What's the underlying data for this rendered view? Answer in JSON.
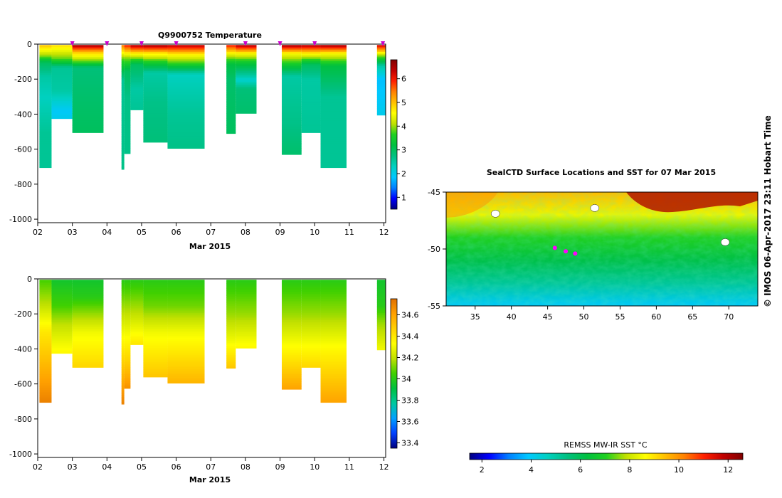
{
  "side_label": "© IMOS 06-Apr-2017 23:11 Hobart Time",
  "colors": {
    "jet_stops": [
      "#00007f",
      "#0000ff",
      "#007fff",
      "#00c8ff",
      "#00d0c0",
      "#00c080",
      "#00c040",
      "#20d020",
      "#c0e000",
      "#ffff00",
      "#ffc000",
      "#ff8000",
      "#ff2000",
      "#c00000",
      "#800000"
    ],
    "salinity_stops": [
      "#00007f",
      "#0040ff",
      "#00a0ff",
      "#00c8a0",
      "#00c040",
      "#40d000",
      "#c0e000",
      "#ffff00",
      "#ffd000",
      "#ffa000",
      "#e07000"
    ]
  },
  "chart_data": [
    {
      "id": "temperature",
      "type": "heatmap",
      "title": "Q9900752  Temperature",
      "xlabel": "Mar 2015",
      "ylabel": "",
      "xlim": [
        2,
        12.05
      ],
      "ylim": [
        -1020,
        0
      ],
      "xticks": [
        "02",
        "03",
        "04",
        "05",
        "06",
        "07",
        "08",
        "09",
        "10",
        "11",
        "12"
      ],
      "yticks": [
        0,
        -200,
        -400,
        -600,
        -800,
        -1000
      ],
      "colorbar": {
        "min": 0.5,
        "max": 6.8,
        "ticks": [
          1,
          2,
          3,
          4,
          5,
          6
        ]
      },
      "profile_markers": [
        3.0,
        4.0,
        5.0,
        6.0,
        8.0,
        9.0,
        10.0,
        11.97
      ],
      "profiles": [
        {
          "x0": 2.05,
          "x1": 2.4,
          "depth": 700,
          "values": [
            {
              "d": 0,
              "v": 5.0
            },
            {
              "d": 60,
              "v": 4.0
            },
            {
              "d": 100,
              "v": 3.0
            },
            {
              "d": 180,
              "v": 2.5
            },
            {
              "d": 300,
              "v": 2.3
            },
            {
              "d": 500,
              "v": 2.6
            },
            {
              "d": 700,
              "v": 2.6
            }
          ]
        },
        {
          "x0": 2.4,
          "x1": 3.0,
          "depth": 420,
          "values": [
            {
              "d": 0,
              "v": 4.8
            },
            {
              "d": 80,
              "v": 3.8
            },
            {
              "d": 130,
              "v": 2.6
            },
            {
              "d": 260,
              "v": 2.5
            },
            {
              "d": 380,
              "v": 1.9
            },
            {
              "d": 420,
              "v": 2.0
            }
          ]
        },
        {
          "x0": 3.0,
          "x1": 3.9,
          "depth": 500,
          "values": [
            {
              "d": 0,
              "v": 6.6
            },
            {
              "d": 40,
              "v": 5.0
            },
            {
              "d": 90,
              "v": 3.9
            },
            {
              "d": 130,
              "v": 2.8
            },
            {
              "d": 300,
              "v": 2.9
            },
            {
              "d": 500,
              "v": 3.0
            }
          ]
        },
        {
          "x0": 4.42,
          "x1": 4.5,
          "depth": 710,
          "values": [
            {
              "d": 0,
              "v": 5.5
            },
            {
              "d": 80,
              "v": 3.8
            },
            {
              "d": 200,
              "v": 2.6
            },
            {
              "d": 710,
              "v": 2.7
            }
          ]
        },
        {
          "x0": 4.5,
          "x1": 4.68,
          "depth": 620,
          "values": [
            {
              "d": 0,
              "v": 6.0
            },
            {
              "d": 70,
              "v": 4.0
            },
            {
              "d": 150,
              "v": 3.0
            },
            {
              "d": 300,
              "v": 2.7
            },
            {
              "d": 620,
              "v": 2.7
            }
          ]
        },
        {
          "x0": 4.68,
          "x1": 5.05,
          "depth": 370,
          "values": [
            {
              "d": 0,
              "v": 6.5
            },
            {
              "d": 50,
              "v": 4.6
            },
            {
              "d": 110,
              "v": 3.0
            },
            {
              "d": 250,
              "v": 2.5
            },
            {
              "d": 370,
              "v": 2.6
            }
          ]
        },
        {
          "x0": 5.05,
          "x1": 5.75,
          "depth": 555,
          "values": [
            {
              "d": 0,
              "v": 6.6
            },
            {
              "d": 45,
              "v": 4.8
            },
            {
              "d": 100,
              "v": 3.5
            },
            {
              "d": 160,
              "v": 2.5
            },
            {
              "d": 330,
              "v": 2.7
            },
            {
              "d": 555,
              "v": 2.8
            }
          ]
        },
        {
          "x0": 5.75,
          "x1": 6.82,
          "depth": 590,
          "values": [
            {
              "d": 0,
              "v": 6.4
            },
            {
              "d": 60,
              "v": 4.5
            },
            {
              "d": 110,
              "v": 3.6
            },
            {
              "d": 170,
              "v": 2.3
            },
            {
              "d": 400,
              "v": 2.6
            },
            {
              "d": 590,
              "v": 2.7
            }
          ]
        },
        {
          "x0": 7.45,
          "x1": 7.72,
          "depth": 505,
          "values": [
            {
              "d": 0,
              "v": 6.0
            },
            {
              "d": 60,
              "v": 4.2
            },
            {
              "d": 110,
              "v": 3.2
            },
            {
              "d": 200,
              "v": 2.9
            },
            {
              "d": 505,
              "v": 3.0
            }
          ]
        },
        {
          "x0": 7.72,
          "x1": 8.32,
          "depth": 390,
          "values": [
            {
              "d": 0,
              "v": 6.5
            },
            {
              "d": 50,
              "v": 4.5
            },
            {
              "d": 100,
              "v": 3.4
            },
            {
              "d": 200,
              "v": 2.2
            },
            {
              "d": 250,
              "v": 2.8
            },
            {
              "d": 390,
              "v": 2.9
            }
          ]
        },
        {
          "x0": 9.05,
          "x1": 9.62,
          "depth": 625,
          "values": [
            {
              "d": 0,
              "v": 6.6
            },
            {
              "d": 50,
              "v": 4.5
            },
            {
              "d": 110,
              "v": 3.5
            },
            {
              "d": 180,
              "v": 2.5
            },
            {
              "d": 450,
              "v": 2.7
            },
            {
              "d": 625,
              "v": 2.9
            }
          ]
        },
        {
          "x0": 9.62,
          "x1": 10.17,
          "depth": 500,
          "values": [
            {
              "d": 0,
              "v": 6.5
            },
            {
              "d": 50,
              "v": 4.6
            },
            {
              "d": 110,
              "v": 3.0
            },
            {
              "d": 200,
              "v": 2.5
            },
            {
              "d": 500,
              "v": 2.6
            }
          ]
        },
        {
          "x0": 10.17,
          "x1": 10.92,
          "depth": 700,
          "values": [
            {
              "d": 0,
              "v": 6.6
            },
            {
              "d": 50,
              "v": 4.5
            },
            {
              "d": 120,
              "v": 3.2
            },
            {
              "d": 300,
              "v": 2.6
            },
            {
              "d": 700,
              "v": 2.6
            }
          ]
        },
        {
          "x0": 11.8,
          "x1": 12.05,
          "depth": 400,
          "values": [
            {
              "d": 0,
              "v": 6.3
            },
            {
              "d": 60,
              "v": 4.0
            },
            {
              "d": 120,
              "v": 2.5
            },
            {
              "d": 200,
              "v": 1.8
            },
            {
              "d": 330,
              "v": 1.9
            },
            {
              "d": 400,
              "v": 2.0
            }
          ]
        }
      ]
    },
    {
      "id": "salinity",
      "type": "heatmap",
      "title": "",
      "xlabel": "Mar 2015",
      "ylabel": "",
      "xlim": [
        2,
        12.05
      ],
      "ylim": [
        -1020,
        0
      ],
      "xticks": [
        "02",
        "03",
        "04",
        "05",
        "06",
        "07",
        "08",
        "09",
        "10",
        "11",
        "12"
      ],
      "yticks": [
        0,
        -200,
        -400,
        -600,
        -800,
        -1000
      ],
      "colorbar": {
        "min": 33.35,
        "max": 34.75,
        "ticks": [
          33.4,
          33.6,
          33.8,
          34,
          34.2,
          34.4,
          34.6
        ]
      },
      "profiles": [
        {
          "x0": 2.05,
          "x1": 2.4,
          "depth": 700,
          "values": [
            {
              "d": 0,
              "v": 34.05
            },
            {
              "d": 150,
              "v": 34.2
            },
            {
              "d": 300,
              "v": 34.4
            },
            {
              "d": 500,
              "v": 34.55
            },
            {
              "d": 700,
              "v": 34.7
            }
          ]
        },
        {
          "x0": 2.4,
          "x1": 3.0,
          "depth": 420,
          "values": [
            {
              "d": 0,
              "v": 33.95
            },
            {
              "d": 150,
              "v": 34.05
            },
            {
              "d": 260,
              "v": 34.2
            },
            {
              "d": 420,
              "v": 34.35
            }
          ]
        },
        {
          "x0": 3.0,
          "x1": 3.9,
          "depth": 500,
          "values": [
            {
              "d": 0,
              "v": 33.95
            },
            {
              "d": 100,
              "v": 34.0
            },
            {
              "d": 200,
              "v": 34.15
            },
            {
              "d": 300,
              "v": 34.3
            },
            {
              "d": 500,
              "v": 34.45
            }
          ]
        },
        {
          "x0": 4.42,
          "x1": 4.5,
          "depth": 710,
          "values": [
            {
              "d": 0,
              "v": 34.0
            },
            {
              "d": 300,
              "v": 34.3
            },
            {
              "d": 710,
              "v": 34.7
            }
          ]
        },
        {
          "x0": 4.5,
          "x1": 4.68,
          "depth": 620,
          "values": [
            {
              "d": 0,
              "v": 34.0
            },
            {
              "d": 250,
              "v": 34.25
            },
            {
              "d": 450,
              "v": 34.45
            },
            {
              "d": 620,
              "v": 34.65
            }
          ]
        },
        {
          "x0": 4.68,
          "x1": 5.05,
          "depth": 370,
          "values": [
            {
              "d": 0,
              "v": 34.0
            },
            {
              "d": 200,
              "v": 34.2
            },
            {
              "d": 370,
              "v": 34.4
            }
          ]
        },
        {
          "x0": 5.05,
          "x1": 5.75,
          "depth": 555,
          "values": [
            {
              "d": 0,
              "v": 34.0
            },
            {
              "d": 150,
              "v": 34.1
            },
            {
              "d": 300,
              "v": 34.3
            },
            {
              "d": 555,
              "v": 34.5
            }
          ]
        },
        {
          "x0": 5.75,
          "x1": 6.82,
          "depth": 590,
          "values": [
            {
              "d": 0,
              "v": 34.0
            },
            {
              "d": 150,
              "v": 34.1
            },
            {
              "d": 300,
              "v": 34.3
            },
            {
              "d": 590,
              "v": 34.55
            }
          ]
        },
        {
          "x0": 7.45,
          "x1": 7.72,
          "depth": 505,
          "values": [
            {
              "d": 0,
              "v": 34.0
            },
            {
              "d": 200,
              "v": 34.15
            },
            {
              "d": 350,
              "v": 34.3
            },
            {
              "d": 505,
              "v": 34.5
            }
          ]
        },
        {
          "x0": 7.72,
          "x1": 8.32,
          "depth": 390,
          "values": [
            {
              "d": 0,
              "v": 34.0
            },
            {
              "d": 200,
              "v": 34.15
            },
            {
              "d": 390,
              "v": 34.35
            }
          ]
        },
        {
          "x0": 9.05,
          "x1": 9.62,
          "depth": 625,
          "values": [
            {
              "d": 0,
              "v": 34.0
            },
            {
              "d": 200,
              "v": 34.15
            },
            {
              "d": 400,
              "v": 34.35
            },
            {
              "d": 625,
              "v": 34.6
            }
          ]
        },
        {
          "x0": 9.62,
          "x1": 10.17,
          "depth": 500,
          "values": [
            {
              "d": 0,
              "v": 34.0
            },
            {
              "d": 200,
              "v": 34.15
            },
            {
              "d": 350,
              "v": 34.3
            },
            {
              "d": 500,
              "v": 34.45
            }
          ]
        },
        {
          "x0": 10.17,
          "x1": 10.92,
          "depth": 700,
          "values": [
            {
              "d": 0,
              "v": 34.0
            },
            {
              "d": 200,
              "v": 34.15
            },
            {
              "d": 400,
              "v": 34.35
            },
            {
              "d": 700,
              "v": 34.6
            }
          ]
        },
        {
          "x0": 11.8,
          "x1": 12.05,
          "depth": 400,
          "values": [
            {
              "d": 0,
              "v": 33.95
            },
            {
              "d": 150,
              "v": 34.0
            },
            {
              "d": 250,
              "v": 34.15
            },
            {
              "d": 400,
              "v": 34.3
            }
          ]
        }
      ]
    },
    {
      "id": "sst-map",
      "type": "heatmap",
      "title": "SealCTD Surface Locations and SST for 07 Mar 2015",
      "xlabel": "",
      "ylabel": "",
      "xlim": [
        31,
        74
      ],
      "ylim": [
        -55,
        -45
      ],
      "xticks": [
        35,
        40,
        45,
        50,
        55,
        60,
        65,
        70
      ],
      "yticks": [
        -45,
        -50,
        -55
      ],
      "legend_title": "REMSS MW-IR SST °C",
      "colorbar": {
        "min": 1.5,
        "max": 12.6,
        "ticks": [
          2,
          4,
          6,
          8,
          10,
          12
        ]
      },
      "seal_locations": [
        {
          "lon": 46.0,
          "lat": -49.9
        },
        {
          "lon": 47.5,
          "lat": -50.2
        },
        {
          "lon": 48.8,
          "lat": -50.4
        }
      ],
      "islands": [
        {
          "lon": 37.8,
          "lat": -46.9
        },
        {
          "lon": 51.5,
          "lat": -46.4
        },
        {
          "lon": 69.5,
          "lat": -49.4
        }
      ]
    }
  ]
}
